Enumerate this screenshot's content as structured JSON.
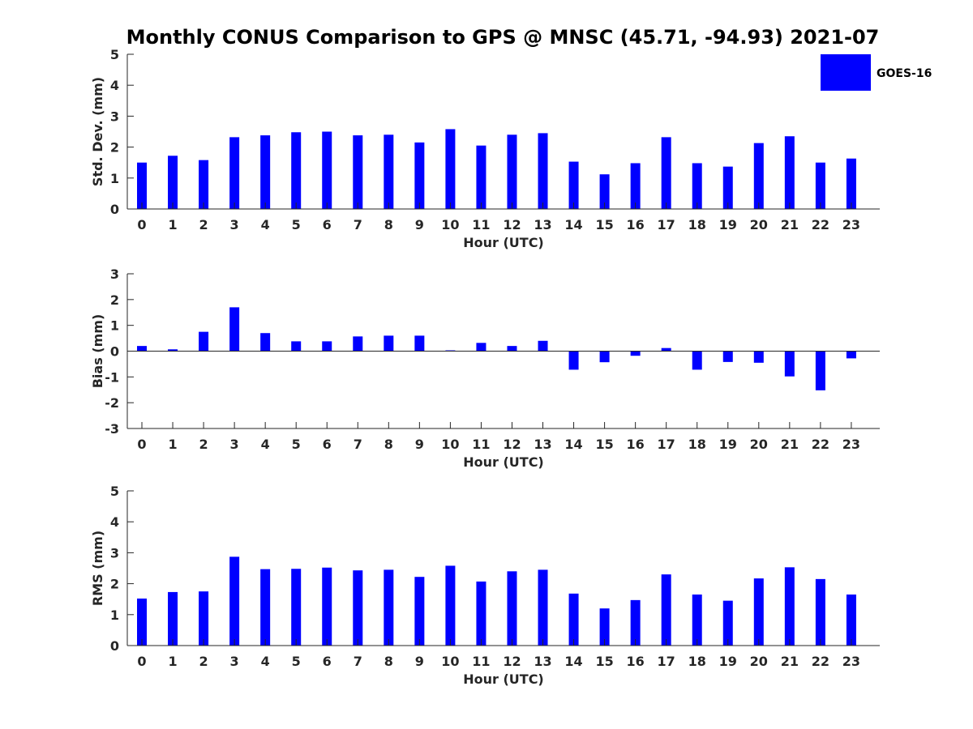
{
  "chart_data": {
    "type": "bar",
    "title": "Monthly CONUS Comparison to GPS @ MNSC (45.71, -94.93) 2021-07",
    "legend": {
      "label": "GOES-16",
      "color": "#0000ff",
      "placement": "top-right"
    },
    "categories": [
      "0",
      "1",
      "2",
      "3",
      "4",
      "5",
      "6",
      "7",
      "8",
      "9",
      "10",
      "11",
      "12",
      "13",
      "14",
      "15",
      "16",
      "17",
      "18",
      "19",
      "20",
      "21",
      "22",
      "23"
    ],
    "panels": [
      {
        "id": "std",
        "ylabel": "Std. Dev. (mm)",
        "xlabel": "Hour (UTC)",
        "ylim": [
          0,
          5
        ],
        "yticks": [
          0,
          1,
          2,
          3,
          4,
          5
        ],
        "series": [
          {
            "name": "GOES-16",
            "values": [
              1.5,
              1.72,
              1.58,
              2.32,
              2.38,
              2.48,
              2.5,
              2.38,
              2.4,
              2.15,
              2.58,
              2.05,
              2.4,
              2.45,
              1.53,
              1.12,
              1.48,
              2.32,
              1.48,
              1.37,
              2.13,
              2.35,
              1.5,
              1.63
            ]
          }
        ]
      },
      {
        "id": "bias",
        "ylabel": "Bias (mm)",
        "xlabel": "Hour (UTC)",
        "ylim": [
          -3,
          3
        ],
        "yticks": [
          -3,
          -2,
          -1,
          0,
          1,
          2,
          3
        ],
        "series": [
          {
            "name": "GOES-16",
            "values": [
              0.2,
              0.07,
              0.75,
              1.7,
              0.7,
              0.38,
              0.38,
              0.57,
              0.6,
              0.6,
              0.03,
              0.32,
              0.2,
              0.4,
              -0.72,
              -0.43,
              -0.18,
              0.12,
              -0.72,
              -0.42,
              -0.45,
              -0.98,
              -1.52,
              -0.28
            ]
          }
        ]
      },
      {
        "id": "rms",
        "ylabel": "RMS (mm)",
        "xlabel": "Hour (UTC)",
        "ylim": [
          0,
          5
        ],
        "yticks": [
          0,
          1,
          2,
          3,
          4,
          5
        ],
        "series": [
          {
            "name": "GOES-16",
            "values": [
              1.52,
              1.73,
              1.75,
              2.87,
              2.47,
              2.48,
              2.52,
              2.43,
              2.45,
              2.22,
              2.58,
              2.07,
              2.4,
              2.45,
              1.68,
              1.2,
              1.47,
              2.3,
              1.65,
              1.45,
              2.17,
              2.53,
              2.15,
              1.65
            ]
          }
        ]
      }
    ]
  }
}
